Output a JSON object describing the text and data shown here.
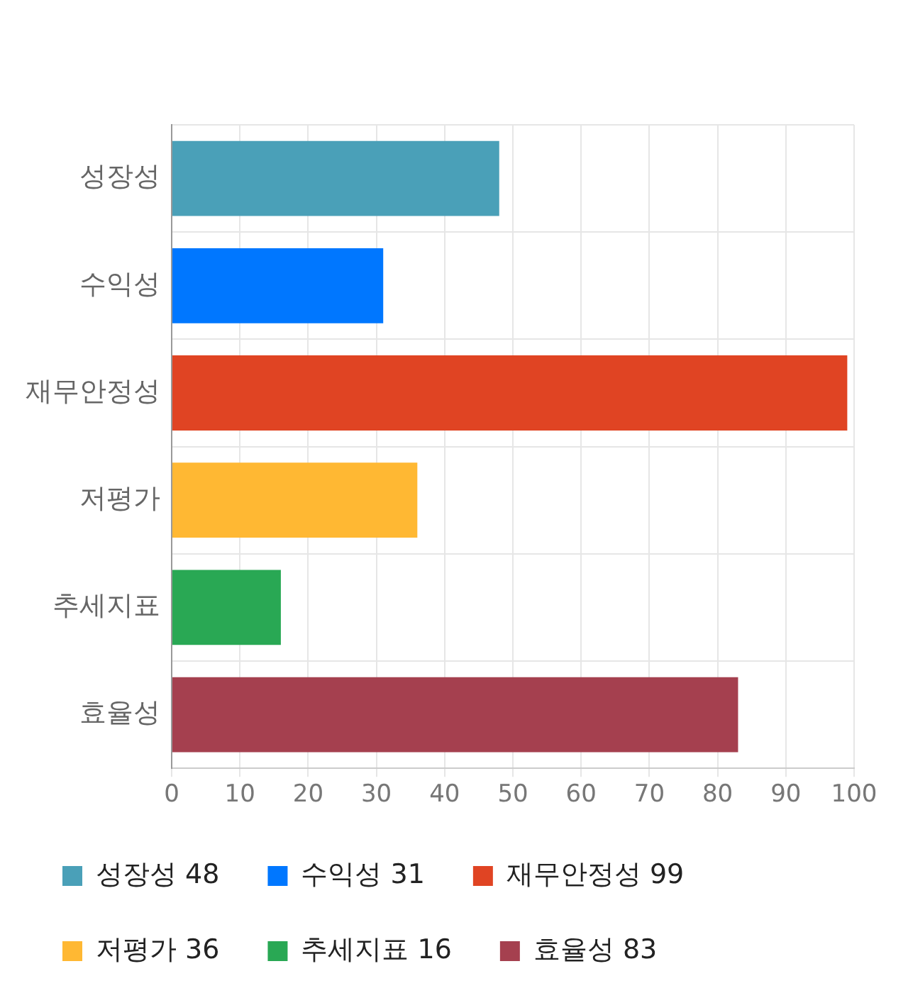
{
  "chart_data": {
    "type": "bar",
    "orientation": "horizontal",
    "categories": [
      "성장성",
      "수익성",
      "재무안정성",
      "저평가",
      "추세지표",
      "효율성"
    ],
    "series": [
      {
        "name": "성장성 48",
        "color": "#4aa0b8",
        "values": [
          48,
          null,
          null,
          null,
          null,
          null
        ]
      },
      {
        "name": "수익성 31",
        "color": "#0077ff",
        "values": [
          null,
          31,
          null,
          null,
          null,
          null
        ]
      },
      {
        "name": "재무안정성 99",
        "color": "#e04423",
        "values": [
          null,
          null,
          99,
          null,
          null,
          null
        ]
      },
      {
        "name": "저평가 36",
        "color": "#ffb833",
        "values": [
          null,
          null,
          null,
          36,
          null,
          null
        ]
      },
      {
        "name": "추세지표 16",
        "color": "#29a854",
        "values": [
          null,
          null,
          null,
          null,
          16,
          null
        ]
      },
      {
        "name": "효율성 83",
        "color": "#a5404f",
        "values": [
          null,
          null,
          null,
          null,
          null,
          83
        ]
      }
    ],
    "xlim": [
      0,
      100
    ],
    "xticks": [
      0,
      10,
      20,
      30,
      40,
      50,
      60,
      70,
      80,
      90,
      100
    ],
    "grid": true,
    "legend": "bottom"
  }
}
